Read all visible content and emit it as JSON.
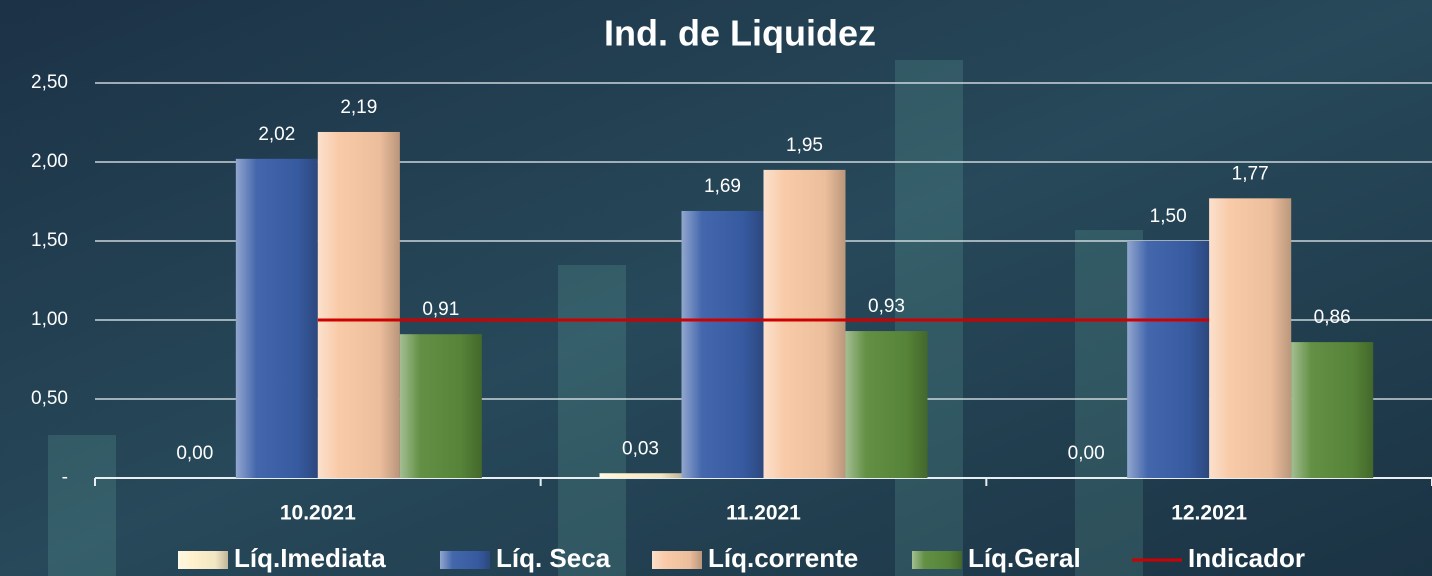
{
  "chart_data": {
    "type": "bar",
    "title": "Ind. de Liquidez",
    "categories": [
      "10.2021",
      "11.2021",
      "12.2021"
    ],
    "series": [
      {
        "name": "Líq.Imediata",
        "color": "#fff2cc",
        "values": [
          0.0,
          0.03,
          0.0
        ],
        "value_labels": [
          "0,00",
          "0,03",
          "0,00"
        ]
      },
      {
        "name": "Líq. Seca",
        "color": "#3a5fa8",
        "values": [
          2.02,
          1.69,
          1.5
        ],
        "value_labels": [
          "2,02",
          "1,69",
          "1,50"
        ]
      },
      {
        "name": "Líq.corrente",
        "color": "#f8c8a4",
        "values": [
          2.19,
          1.95,
          1.77
        ],
        "value_labels": [
          "2,19",
          "1,95",
          "1,77"
        ]
      },
      {
        "name": "Líq.Geral",
        "color": "#5a8a3a",
        "values": [
          0.91,
          0.93,
          0.86
        ],
        "value_labels": [
          "0,91",
          "0,93",
          "0,86"
        ]
      },
      {
        "name": "Indicador",
        "type": "line",
        "color": "#d00000",
        "values": [
          1,
          1,
          1
        ]
      }
    ],
    "ylim": [
      0,
      2.5
    ],
    "yticks": [
      {
        "value": 0,
        "label": "-"
      },
      {
        "value": 0.5,
        "label": "0,50"
      },
      {
        "value": 1,
        "label": "1,00"
      },
      {
        "value": 1.5,
        "label": "1,50"
      },
      {
        "value": 2,
        "label": "2,00"
      },
      {
        "value": 2.5,
        "label": "2,50"
      }
    ],
    "grid": true
  }
}
